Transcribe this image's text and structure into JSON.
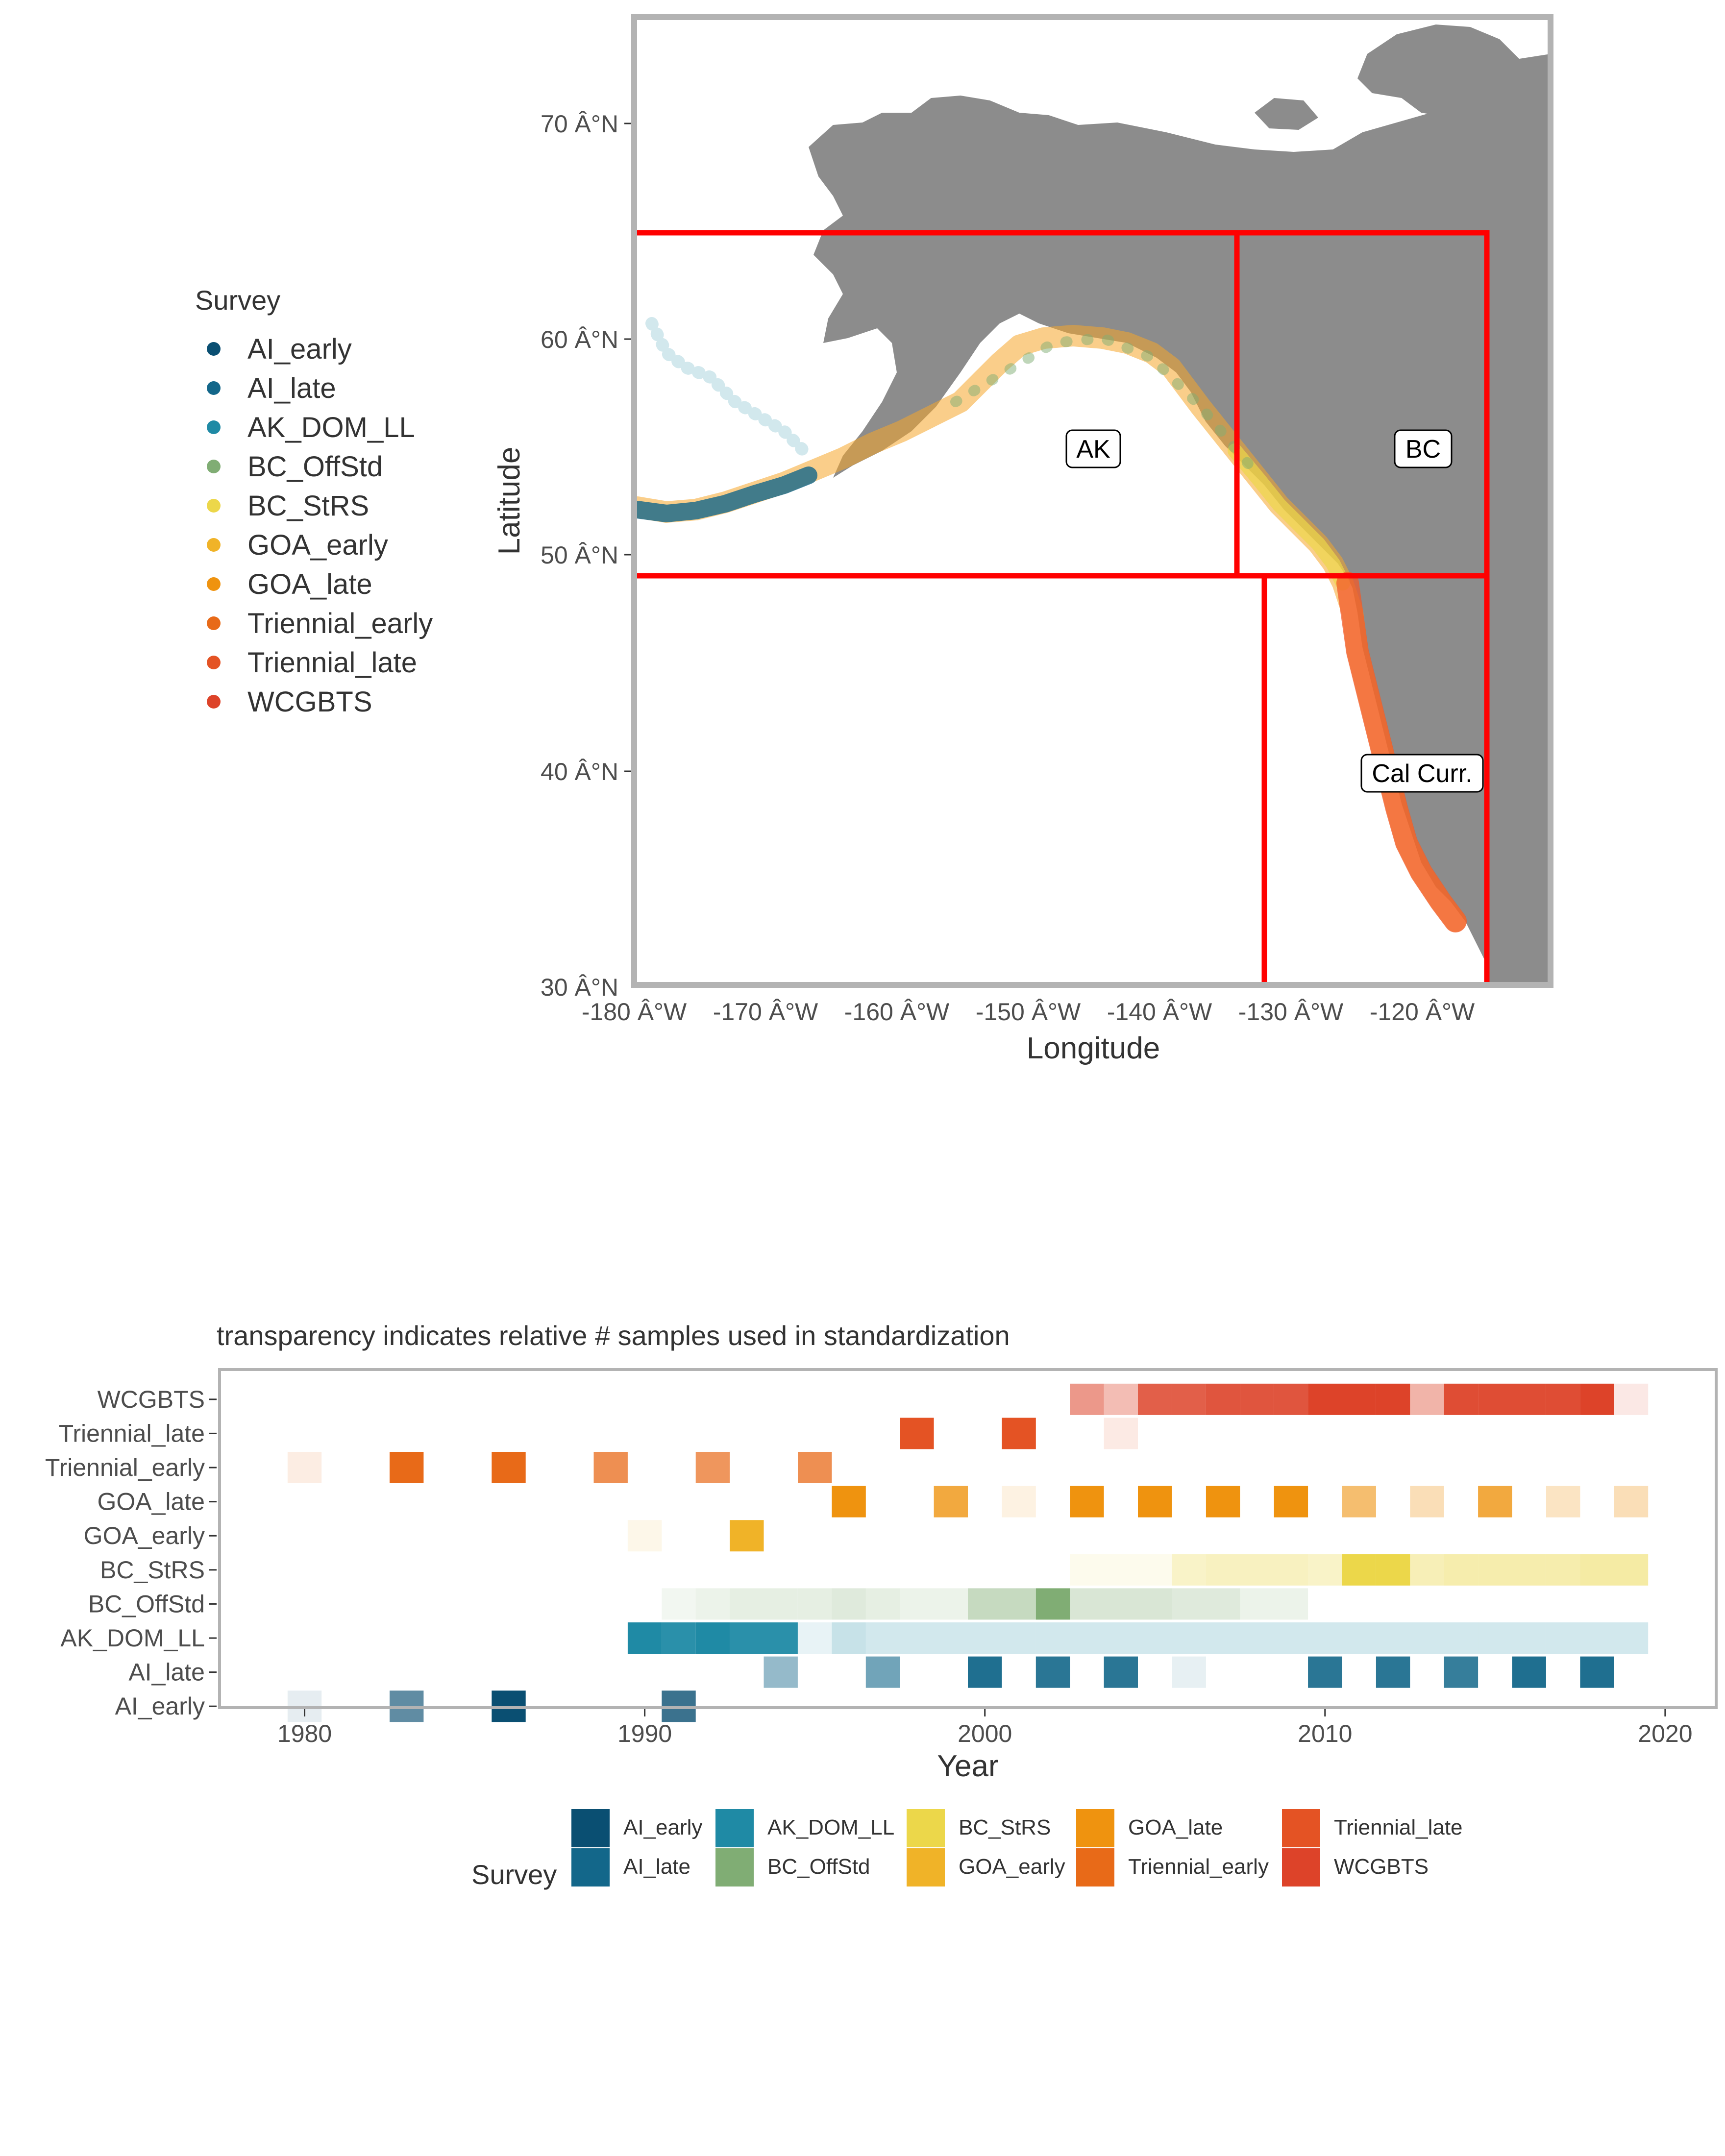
{
  "map": {
    "x_axis_title": "Longitude",
    "y_axis_title": "Latitude",
    "x_ticks": [
      "-180 Â°W",
      "-170 Â°W",
      "-160 Â°W",
      "-150 Â°W",
      "-140 Â°W",
      "-130 Â°W",
      "-120 Â°W"
    ],
    "y_ticks": [
      "30 Â°N",
      "40 Â°N",
      "50 Â°N",
      "60 Â°N",
      "70 Â°N"
    ],
    "legend_title": "Survey",
    "legend_items": [
      {
        "label": "AI_early",
        "color": "#0a4f72"
      },
      {
        "label": "AI_late",
        "color": "#13678a"
      },
      {
        "label": "AK_DOM_LL",
        "color": "#1f8aa5"
      },
      {
        "label": "BC_OffStd",
        "color": "#80ad74"
      },
      {
        "label": "BC_StRS",
        "color": "#ecd74a"
      },
      {
        "label": "GOA_early",
        "color": "#f0b328"
      },
      {
        "label": "GOA_late",
        "color": "#ef930f"
      },
      {
        "label": "Triennial_early",
        "color": "#e86a18"
      },
      {
        "label": "Triennial_late",
        "color": "#e45324"
      },
      {
        "label": "WCGBTS",
        "color": "#dd4329"
      }
    ],
    "regions": [
      "AK",
      "BC",
      "Cal Curr."
    ],
    "land_color": "#8c8c8c",
    "boundary_color": "#ff0000"
  },
  "chart_data": {
    "type": "heatmap",
    "title": "transparency indicates relative # samples used in standardization",
    "xlabel": "Year",
    "ylabel": "",
    "xlim": [
      1977.5,
      2021.5
    ],
    "x_ticks": [
      "1980",
      "1990",
      "2000",
      "2010",
      "2020"
    ],
    "x_tick_values": [
      1980,
      1990,
      2000,
      2010,
      2020
    ],
    "categories": [
      "AI_early",
      "AI_late",
      "AK_DOM_LL",
      "BC_OffStd",
      "BC_StRS",
      "GOA_early",
      "GOA_late",
      "Triennial_early",
      "Triennial_late",
      "WCGBTS"
    ],
    "legend_title": "Survey",
    "series": [
      {
        "name": "AI_early",
        "color": "#0a4f72",
        "cells": [
          [
            1980,
            0.1
          ],
          [
            1983,
            0.65
          ],
          [
            1986,
            1.0
          ],
          [
            1991,
            0.8
          ]
        ]
      },
      {
        "name": "AI_late",
        "color": "#13678a",
        "cells": [
          [
            1994,
            0.45
          ],
          [
            1997,
            0.6
          ],
          [
            2000,
            0.95
          ],
          [
            2002,
            0.9
          ],
          [
            2004,
            0.9
          ],
          [
            2006,
            0.1
          ],
          [
            2010,
            0.9
          ],
          [
            2012,
            0.9
          ],
          [
            2014,
            0.85
          ],
          [
            2016,
            0.95
          ],
          [
            2018,
            0.95
          ]
        ]
      },
      {
        "name": "AK_DOM_LL",
        "color": "#1f8aa5",
        "cells": [
          [
            1990,
            1.0
          ],
          [
            1991,
            0.95
          ],
          [
            1992,
            1.0
          ],
          [
            1993,
            0.95
          ],
          [
            1994,
            0.95
          ],
          [
            1995,
            0.1
          ],
          [
            1996,
            0.25
          ],
          [
            1997,
            0.2
          ],
          [
            1998,
            0.2
          ],
          [
            1999,
            0.2
          ],
          [
            2000,
            0.2
          ],
          [
            2001,
            0.2
          ],
          [
            2002,
            0.2
          ],
          [
            2003,
            0.2
          ],
          [
            2004,
            0.2
          ],
          [
            2005,
            0.2
          ],
          [
            2006,
            0.2
          ],
          [
            2007,
            0.2
          ],
          [
            2008,
            0.2
          ],
          [
            2009,
            0.2
          ],
          [
            2010,
            0.2
          ],
          [
            2011,
            0.2
          ],
          [
            2012,
            0.2
          ],
          [
            2013,
            0.2
          ],
          [
            2014,
            0.2
          ],
          [
            2015,
            0.2
          ],
          [
            2016,
            0.2
          ],
          [
            2017,
            0.2
          ],
          [
            2018,
            0.2
          ],
          [
            2019,
            0.2
          ]
        ]
      },
      {
        "name": "BC_OffStd",
        "color": "#80ad74",
        "cells": [
          [
            1991,
            0.1
          ],
          [
            1992,
            0.15
          ],
          [
            1993,
            0.2
          ],
          [
            1994,
            0.2
          ],
          [
            1995,
            0.2
          ],
          [
            1996,
            0.25
          ],
          [
            1997,
            0.2
          ],
          [
            1998,
            0.15
          ],
          [
            1999,
            0.15
          ],
          [
            2000,
            0.45
          ],
          [
            2001,
            0.45
          ],
          [
            2002,
            1.0
          ],
          [
            2003,
            0.3
          ],
          [
            2004,
            0.3
          ],
          [
            2005,
            0.3
          ],
          [
            2006,
            0.25
          ],
          [
            2007,
            0.25
          ],
          [
            2008,
            0.15
          ],
          [
            2009,
            0.15
          ]
        ]
      },
      {
        "name": "BC_StRS",
        "color": "#ecd74a",
        "cells": [
          [
            2003,
            0.1
          ],
          [
            2004,
            0.1
          ],
          [
            2005,
            0.1
          ],
          [
            2006,
            0.3
          ],
          [
            2007,
            0.35
          ],
          [
            2008,
            0.35
          ],
          [
            2009,
            0.35
          ],
          [
            2010,
            0.3
          ],
          [
            2011,
            1.0
          ],
          [
            2012,
            1.0
          ],
          [
            2013,
            0.4
          ],
          [
            2014,
            0.45
          ],
          [
            2015,
            0.45
          ],
          [
            2016,
            0.45
          ],
          [
            2017,
            0.45
          ],
          [
            2018,
            0.5
          ],
          [
            2019,
            0.5
          ]
        ]
      },
      {
        "name": "GOA_early",
        "color": "#f0b328",
        "cells": [
          [
            1990,
            0.1
          ],
          [
            1993,
            1.0
          ]
        ]
      },
      {
        "name": "GOA_late",
        "color": "#ef930f",
        "cells": [
          [
            1996,
            1.0
          ],
          [
            1999,
            0.8
          ],
          [
            2001,
            0.12
          ],
          [
            2003,
            1.0
          ],
          [
            2005,
            1.0
          ],
          [
            2007,
            1.0
          ],
          [
            2009,
            1.0
          ],
          [
            2011,
            0.6
          ],
          [
            2013,
            0.3
          ],
          [
            2015,
            0.8
          ],
          [
            2017,
            0.25
          ],
          [
            2019,
            0.3
          ]
        ]
      },
      {
        "name": "Triennial_early",
        "color": "#e86a18",
        "cells": [
          [
            1980,
            0.12
          ],
          [
            1983,
            1.0
          ],
          [
            1986,
            1.0
          ],
          [
            1989,
            0.75
          ],
          [
            1992,
            0.7
          ],
          [
            1995,
            0.75
          ]
        ]
      },
      {
        "name": "Triennial_late",
        "color": "#e45324",
        "cells": [
          [
            1998,
            1.0
          ],
          [
            2001,
            1.0
          ],
          [
            2004,
            0.12
          ]
        ]
      },
      {
        "name": "WCGBTS",
        "color": "#dd4329",
        "cells": [
          [
            2003,
            0.55
          ],
          [
            2004,
            0.35
          ],
          [
            2005,
            0.85
          ],
          [
            2006,
            0.85
          ],
          [
            2007,
            0.9
          ],
          [
            2008,
            0.9
          ],
          [
            2009,
            0.9
          ],
          [
            2010,
            1.0
          ],
          [
            2011,
            1.0
          ],
          [
            2012,
            1.0
          ],
          [
            2013,
            0.4
          ],
          [
            2014,
            0.95
          ],
          [
            2015,
            0.95
          ],
          [
            2016,
            0.95
          ],
          [
            2017,
            0.95
          ],
          [
            2018,
            1.0
          ],
          [
            2019,
            0.12
          ]
        ]
      }
    ]
  }
}
